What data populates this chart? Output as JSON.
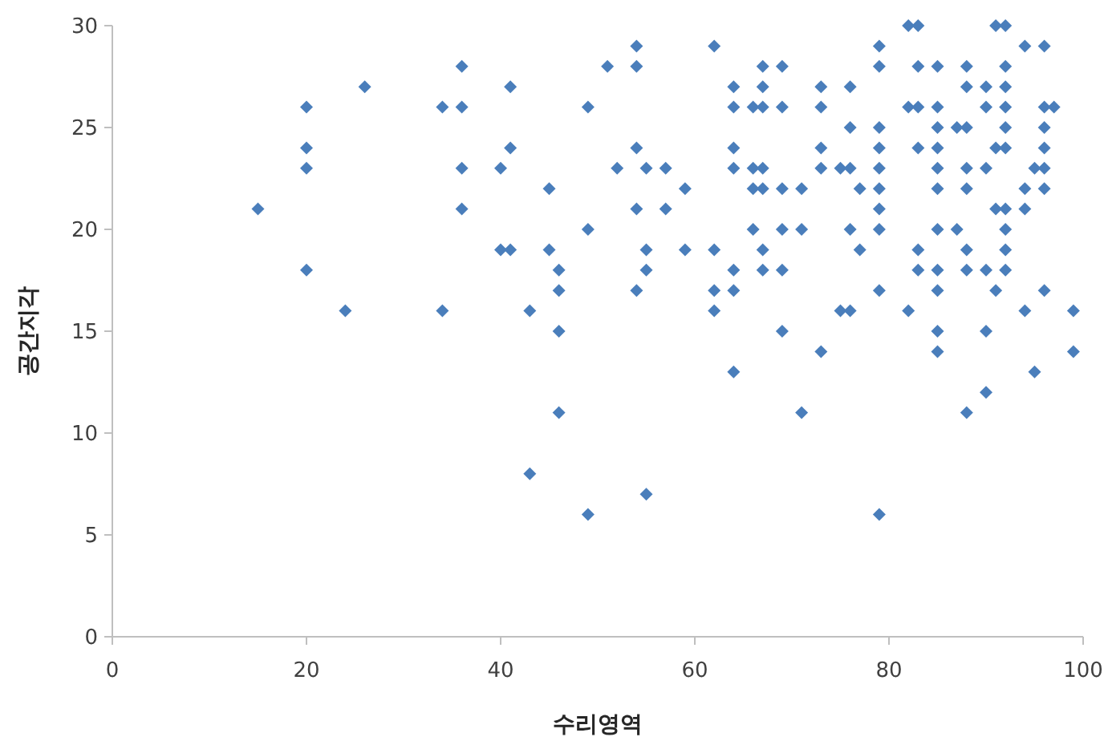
{
  "chart_data": {
    "type": "scatter",
    "xlabel": "수리영역",
    "ylabel": "공간지각",
    "marker": "diamond",
    "xlim": [
      0,
      100
    ],
    "ylim": [
      0,
      30
    ],
    "xticks": [
      0,
      20,
      40,
      60,
      80,
      100
    ],
    "yticks": [
      0,
      5,
      10,
      15,
      20,
      25,
      30
    ],
    "series": [
      {
        "color": "#4a7ebb",
        "x": [
          15,
          20,
          20,
          20,
          20,
          24,
          26,
          34,
          34,
          36,
          36,
          36,
          36,
          40,
          40,
          41,
          41,
          41,
          43,
          43,
          45,
          45,
          46,
          46,
          46,
          46,
          49,
          49,
          49,
          51,
          52,
          54,
          54,
          54,
          54,
          54,
          55,
          55,
          55,
          55,
          57,
          57,
          59,
          59,
          62,
          62,
          62,
          62,
          64,
          64,
          64,
          64,
          64,
          64,
          64,
          66,
          66,
          66,
          66,
          67,
          67,
          67,
          67,
          67,
          67,
          67,
          69,
          69,
          69,
          69,
          69,
          69,
          71,
          71,
          71,
          73,
          73,
          73,
          73,
          73,
          75,
          75,
          76,
          76,
          76,
          76,
          76,
          77,
          77,
          79,
          79,
          79,
          79,
          79,
          79,
          79,
          79,
          79,
          79,
          82,
          82,
          82,
          83,
          83,
          83,
          83,
          83,
          83,
          85,
          85,
          85,
          85,
          85,
          85,
          85,
          85,
          85,
          85,
          85,
          87,
          87,
          88,
          88,
          88,
          88,
          88,
          88,
          88,
          88,
          90,
          90,
          90,
          90,
          90,
          90,
          91,
          91,
          91,
          91,
          92,
          92,
          92,
          92,
          92,
          92,
          92,
          92,
          92,
          92,
          94,
          94,
          94,
          94,
          95,
          95,
          96,
          96,
          96,
          96,
          96,
          96,
          96,
          97,
          99,
          99
        ],
        "values": [
          21,
          26,
          24,
          23,
          18,
          16,
          27,
          26,
          16,
          28,
          26,
          23,
          21,
          23,
          19,
          27,
          24,
          19,
          16,
          8,
          22,
          19,
          18,
          17,
          15,
          11,
          26,
          20,
          6,
          28,
          23,
          29,
          28,
          24,
          21,
          17,
          23,
          19,
          18,
          7,
          23,
          21,
          22,
          19,
          29,
          19,
          17,
          16,
          27,
          26,
          24,
          23,
          18,
          17,
          13,
          26,
          23,
          22,
          20,
          28,
          27,
          26,
          23,
          22,
          19,
          18,
          28,
          26,
          22,
          20,
          18,
          15,
          22,
          20,
          11,
          27,
          26,
          24,
          23,
          14,
          23,
          16,
          27,
          25,
          23,
          20,
          16,
          22,
          19,
          29,
          28,
          25,
          24,
          23,
          22,
          21,
          20,
          17,
          6,
          30,
          26,
          16,
          30,
          28,
          26,
          24,
          19,
          18,
          28,
          26,
          25,
          24,
          23,
          22,
          20,
          18,
          17,
          15,
          14,
          25,
          20,
          28,
          27,
          25,
          23,
          22,
          19,
          18,
          11,
          27,
          26,
          23,
          18,
          15,
          12,
          30,
          24,
          21,
          17,
          30,
          28,
          27,
          26,
          25,
          24,
          21,
          20,
          19,
          18,
          29,
          22,
          21,
          16,
          23,
          13,
          29,
          26,
          25,
          24,
          23,
          22,
          17,
          26,
          16,
          14
        ]
      }
    ]
  }
}
